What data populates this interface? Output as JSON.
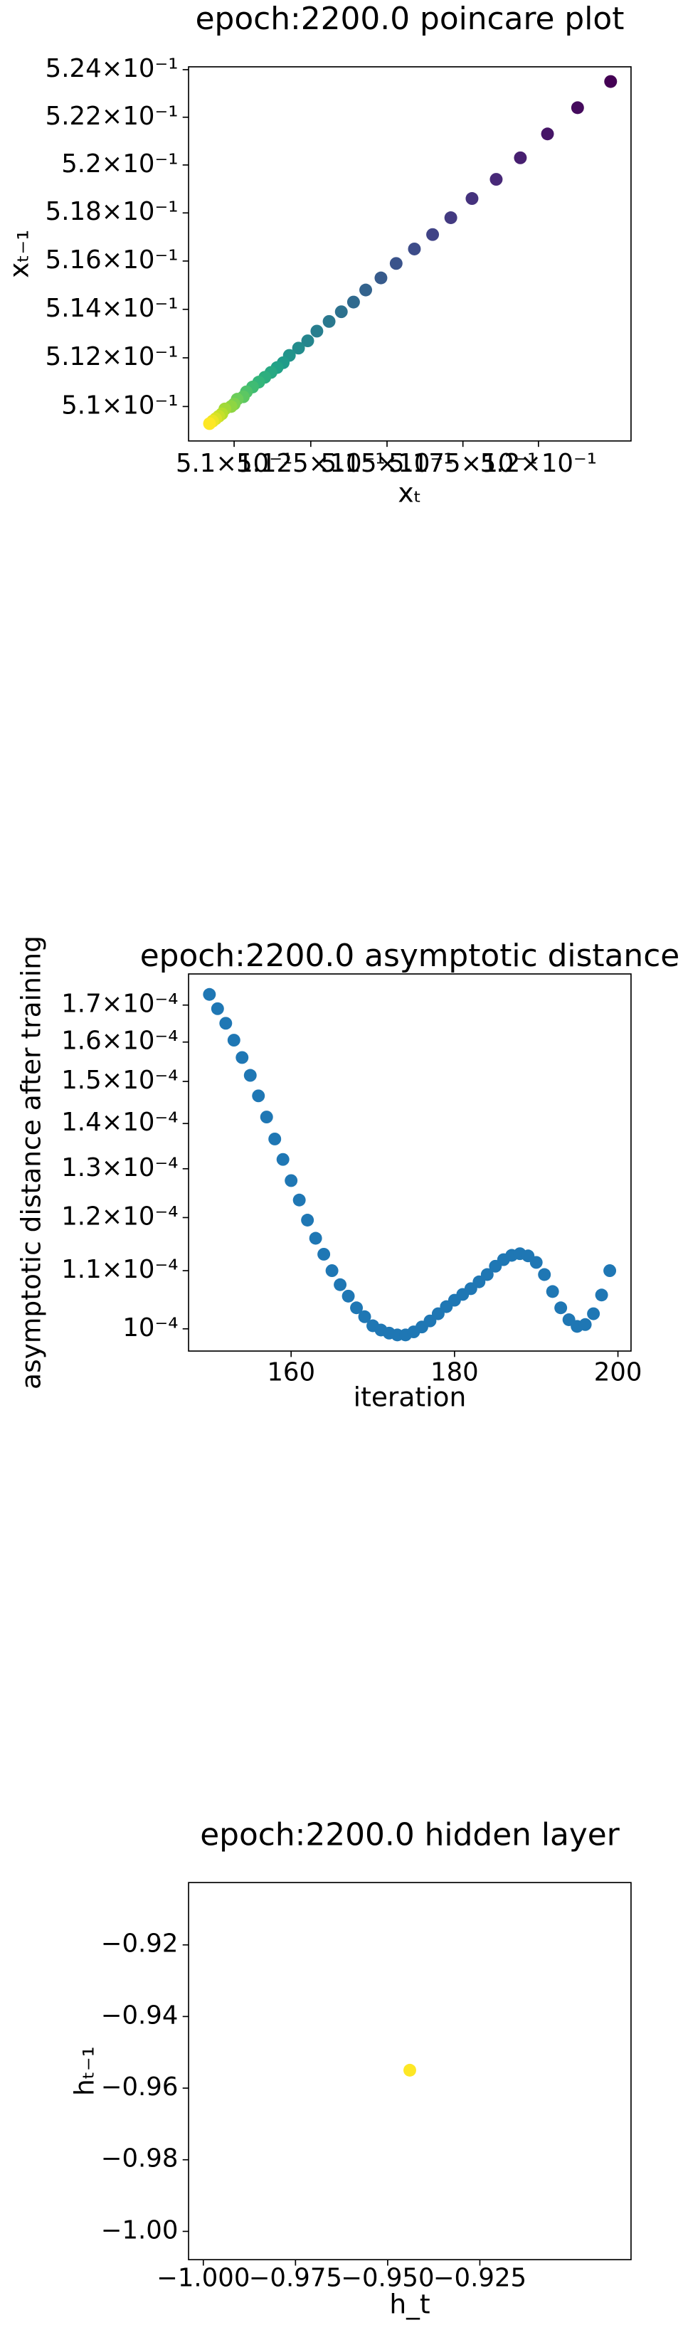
{
  "chart_data": [
    {
      "type": "scatter",
      "title": "epoch:2200.0 poincare plot",
      "xlabel": "xₜ",
      "ylabel": "xₜ₋₁",
      "colormap": "viridis",
      "x": [
        0.5224,
        0.5213,
        0.5203,
        0.5194,
        0.5186,
        0.5178,
        0.5171,
        0.5165,
        0.5159,
        0.5153,
        0.5148,
        0.5143,
        0.5139,
        0.5135,
        0.5131,
        0.5127,
        0.5124,
        0.5121,
        0.5118,
        0.5116,
        0.5114,
        0.5112,
        0.511,
        0.5108,
        0.5106,
        0.5104,
        0.5103,
        0.5101,
        0.51,
        0.5099,
        0.5097,
        0.5096,
        0.5095,
        0.5094,
        0.5093,
        0.5092
      ],
      "values": [
        0.5235,
        0.5224,
        0.5213,
        0.5203,
        0.5194,
        0.5186,
        0.5178,
        0.5171,
        0.5165,
        0.5159,
        0.5153,
        0.5148,
        0.5143,
        0.5139,
        0.5135,
        0.5131,
        0.5127,
        0.5124,
        0.5121,
        0.5118,
        0.5116,
        0.5114,
        0.5112,
        0.511,
        0.5108,
        0.5106,
        0.5104,
        0.5103,
        0.5101,
        0.51,
        0.5099,
        0.5097,
        0.5096,
        0.5095,
        0.5094,
        0.5093
      ],
      "xlim": [
        0.50852,
        0.52308
      ],
      "ylim": [
        0.50859,
        0.52412
      ],
      "xscale": "log",
      "yscale": "log",
      "xticks": [
        {
          "value": 0.51,
          "label": "5.1×10⁻¹"
        },
        {
          "value": 0.5125,
          "label": "5.125×10⁻¹"
        },
        {
          "value": 0.515,
          "label": "5.15×10⁻¹"
        },
        {
          "value": 0.5175,
          "label": "5.175×10⁻¹"
        },
        {
          "value": 0.52,
          "label": "5.2×10⁻¹"
        }
      ],
      "yticks": [
        {
          "value": 0.51,
          "label": "5.1×10⁻¹"
        },
        {
          "value": 0.512,
          "label": "5.12×10⁻¹"
        },
        {
          "value": 0.514,
          "label": "5.14×10⁻¹"
        },
        {
          "value": 0.516,
          "label": "5.16×10⁻¹"
        },
        {
          "value": 0.518,
          "label": "5.18×10⁻¹"
        },
        {
          "value": 0.52,
          "label": "5.2×10⁻¹"
        },
        {
          "value": 0.522,
          "label": "5.22×10⁻¹"
        },
        {
          "value": 0.524,
          "label": "5.24×10⁻¹"
        }
      ]
    },
    {
      "type": "scatter",
      "title": "epoch:2200.0 asymptotic distance",
      "xlabel": "iteration",
      "ylabel": "asymptotic distance after training",
      "color": "#1f77b4",
      "x": [
        150,
        151,
        152,
        153,
        154,
        155,
        156,
        157,
        158,
        159,
        160,
        161,
        162,
        163,
        164,
        165,
        166,
        167,
        168,
        169,
        170,
        171,
        172,
        173,
        174,
        175,
        176,
        177,
        178,
        179,
        180,
        181,
        182,
        183,
        184,
        185,
        186,
        187,
        188,
        189,
        190,
        191,
        192,
        193,
        194,
        195,
        196,
        197,
        198,
        199
      ],
      "values": [
        0.000173,
        0.000169,
        0.000165,
        0.0001605,
        0.000156,
        0.0001515,
        0.0001465,
        0.0001415,
        0.0001365,
        0.000132,
        0.0001275,
        0.0001235,
        0.0001195,
        0.000116,
        0.000113,
        0.00011,
        0.0001075,
        0.0001055,
        0.0001035,
        0.000102,
        0.0001005,
        9.98e-05,
        9.93e-05,
        9.9e-05,
        9.9e-05,
        9.95e-05,
        0.0001003,
        0.0001013,
        0.0001025,
        0.0001037,
        0.0001048,
        0.0001058,
        0.0001068,
        0.000108,
        0.0001093,
        0.0001108,
        0.000112,
        0.0001128,
        0.0001131,
        0.0001127,
        0.0001115,
        0.0001093,
        0.0001063,
        0.0001035,
        0.0001015,
        0.0001004,
        0.0001007,
        0.0001025,
        0.0001057,
        0.00011
      ],
      "xlim": [
        147.45,
        201.6
      ],
      "ylim": [
        9.642e-05,
        0.0001789
      ],
      "yscale": "log",
      "xticks": [
        160,
        180,
        200
      ],
      "yticks": [
        {
          "value": 0.0001,
          "label": "10⁻⁴"
        },
        {
          "value": 0.00011,
          "label": "1.1×10⁻⁴"
        },
        {
          "value": 0.00012,
          "label": "1.2×10⁻⁴"
        },
        {
          "value": 0.00013,
          "label": "1.3×10⁻⁴"
        },
        {
          "value": 0.00014,
          "label": "1.4×10⁻⁴"
        },
        {
          "value": 0.00015,
          "label": "1.5×10⁻⁴"
        },
        {
          "value": 0.00016,
          "label": "1.6×10⁻⁴"
        },
        {
          "value": 0.00017,
          "label": "1.7×10⁻⁴"
        }
      ]
    },
    {
      "type": "scatter",
      "title": "epoch:2200.0 hidden layer",
      "xlabel": "h_t",
      "ylabel": "hₜ₋₁",
      "color": "#fde725",
      "x": [
        -0.944
      ],
      "values": [
        -0.955
      ],
      "xlim": [
        -1.004,
        -0.884
      ],
      "ylim": [
        -1.0079,
        -0.9026
      ],
      "xticks": [
        {
          "value": -1.0,
          "label": "−1.000"
        },
        {
          "value": -0.975,
          "label": "−0.975"
        },
        {
          "value": -0.95,
          "label": "−0.950"
        },
        {
          "value": -0.925,
          "label": "−0.925"
        }
      ],
      "yticks": [
        {
          "value": -1.0,
          "label": "−1.00"
        },
        {
          "value": -0.98,
          "label": "−0.98"
        },
        {
          "value": -0.96,
          "label": "−0.96"
        },
        {
          "value": -0.94,
          "label": "−0.94"
        },
        {
          "value": -0.92,
          "label": "−0.92"
        }
      ]
    }
  ]
}
